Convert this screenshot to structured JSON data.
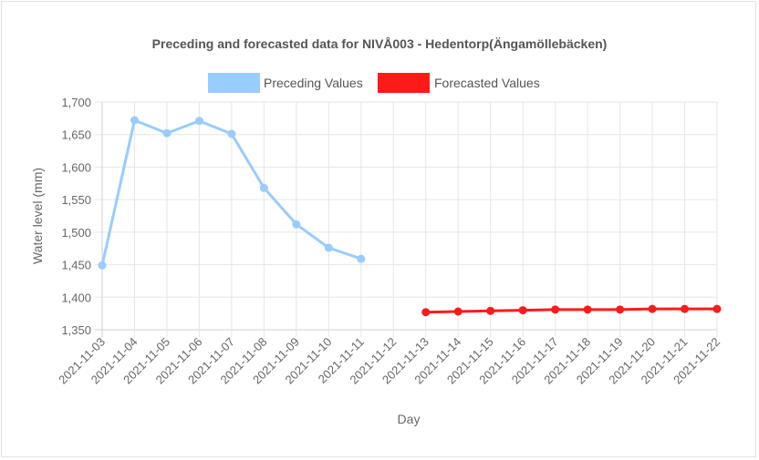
{
  "chart_data": {
    "type": "line",
    "title": "Preceding and forecasted data for NIVÅ003 - Hedentorp(Ängamöllebäcken)",
    "xlabel": "Day",
    "ylabel": "Water level (mm)",
    "ylim": [
      1350,
      1700
    ],
    "yticks": [
      "1,700",
      "1,650",
      "1,600",
      "1,550",
      "1,500",
      "1,450",
      "1,400",
      "1,350"
    ],
    "categories": [
      "2021-11-03",
      "2021-11-04",
      "2021-11-05",
      "2021-11-06",
      "2021-11-07",
      "2021-11-08",
      "2021-11-09",
      "2021-11-10",
      "2021-11-11",
      "2021-11-12",
      "2021-11-13",
      "2021-11-14",
      "2021-11-15",
      "2021-11-16",
      "2021-11-17",
      "2021-11-18",
      "2021-11-19",
      "2021-11-20",
      "2021-11-21",
      "2021-11-22"
    ],
    "grid": true,
    "legend_position": "top",
    "series": [
      {
        "name": "Preceding Values",
        "color": "#99ccff",
        "values": [
          1449,
          1672,
          1652,
          1671,
          1651,
          1568,
          1512,
          1476,
          1459,
          null,
          null,
          null,
          null,
          null,
          null,
          null,
          null,
          null,
          null,
          null
        ]
      },
      {
        "name": "Forecasted Values",
        "color": "#ff1a1a",
        "values": [
          null,
          null,
          null,
          null,
          null,
          null,
          null,
          null,
          null,
          null,
          1377,
          1378,
          1379,
          1380,
          1381,
          1381,
          1381,
          1382,
          1382,
          1382
        ]
      }
    ]
  }
}
